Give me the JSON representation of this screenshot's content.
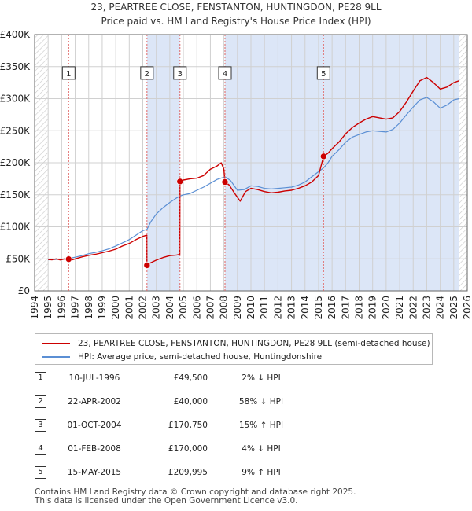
{
  "chart_data": {
    "type": "line",
    "title": "23, PEARTREE CLOSE, FENSTANTON, HUNTINGDON, PE28 9LL",
    "subtitle": "Price paid vs. HM Land Registry's House Price Index (HPI)",
    "xlim": [
      1994,
      2026
    ],
    "ylim": [
      0,
      400000
    ],
    "x_ticks": [
      "1994",
      "1995",
      "1996",
      "1997",
      "1998",
      "1999",
      "2000",
      "2001",
      "2002",
      "2003",
      "2004",
      "2005",
      "2006",
      "2007",
      "2008",
      "2009",
      "2010",
      "2011",
      "2012",
      "2013",
      "2014",
      "2015",
      "2016",
      "2017",
      "2018",
      "2019",
      "2020",
      "2021",
      "2022",
      "2023",
      "2024",
      "2025",
      "2026"
    ],
    "y_ticks": [
      {
        "value": 0,
        "label": "£0"
      },
      {
        "value": 50000,
        "label": "£50K"
      },
      {
        "value": 100000,
        "label": "£100K"
      },
      {
        "value": 150000,
        "label": "£150K"
      },
      {
        "value": 200000,
        "label": "£200K"
      },
      {
        "value": 250000,
        "label": "£250K"
      },
      {
        "value": 300000,
        "label": "£300K"
      },
      {
        "value": 350000,
        "label": "£350K"
      },
      {
        "value": 400000,
        "label": "£400K"
      }
    ],
    "grid": true,
    "data_span": [
      1995.0,
      2025.4
    ],
    "hatched_regions": [
      [
        1994,
        1995.0
      ],
      [
        2025.4,
        2026
      ]
    ],
    "colors": {
      "property": "#cc0000",
      "hpi": "#5b8fd4",
      "sale_band": "#dce6f7",
      "marker_line": "#e06666",
      "hatch": "#c8c8c8"
    },
    "series": [
      {
        "name": "23, PEARTREE CLOSE, FENSTANTON, HUNTINGDON, PE28 9LL (semi-detached house)",
        "color": "#cc0000",
        "points": [
          [
            1995.0,
            49000
          ],
          [
            1995.3,
            48500
          ],
          [
            1995.6,
            50000
          ],
          [
            1995.9,
            48200
          ],
          [
            1996.2,
            49800
          ],
          [
            1996.52,
            49500
          ],
          [
            1996.8,
            48600
          ],
          [
            1997.1,
            50600
          ],
          [
            1997.5,
            53000
          ],
          [
            1998.0,
            55500
          ],
          [
            1998.5,
            57000
          ],
          [
            1999.0,
            59500
          ],
          [
            1999.5,
            62000
          ],
          [
            2000.0,
            65000
          ],
          [
            2000.5,
            70000
          ],
          [
            2001.0,
            74000
          ],
          [
            2001.5,
            80000
          ],
          [
            2002.0,
            85000
          ],
          [
            2002.3,
            87000
          ],
          [
            2002.31,
            40000
          ],
          [
            2002.6,
            44000
          ],
          [
            2003.0,
            48000
          ],
          [
            2003.5,
            52000
          ],
          [
            2004.0,
            55000
          ],
          [
            2004.5,
            56000
          ],
          [
            2004.74,
            57000
          ],
          [
            2004.75,
            170750
          ],
          [
            2005.0,
            173000
          ],
          [
            2005.5,
            175000
          ],
          [
            2006.0,
            176000
          ],
          [
            2006.5,
            180000
          ],
          [
            2007.0,
            190000
          ],
          [
            2007.5,
            195000
          ],
          [
            2007.8,
            200000
          ],
          [
            2008.0,
            190000
          ],
          [
            2008.08,
            170000
          ],
          [
            2008.4,
            165000
          ],
          [
            2008.8,
            152000
          ],
          [
            2009.2,
            140000
          ],
          [
            2009.6,
            155000
          ],
          [
            2010.0,
            160000
          ],
          [
            2010.5,
            158000
          ],
          [
            2011.0,
            155000
          ],
          [
            2011.5,
            153000
          ],
          [
            2012.0,
            154000
          ],
          [
            2012.5,
            156000
          ],
          [
            2013.0,
            157000
          ],
          [
            2013.5,
            160000
          ],
          [
            2014.0,
            164000
          ],
          [
            2014.5,
            170000
          ],
          [
            2015.0,
            180000
          ],
          [
            2015.37,
            209995
          ],
          [
            2015.7,
            215000
          ],
          [
            2016.0,
            222000
          ],
          [
            2016.5,
            232000
          ],
          [
            2017.0,
            245000
          ],
          [
            2017.5,
            255000
          ],
          [
            2018.0,
            262000
          ],
          [
            2018.5,
            268000
          ],
          [
            2019.0,
            272000
          ],
          [
            2019.5,
            270000
          ],
          [
            2020.0,
            268000
          ],
          [
            2020.5,
            270000
          ],
          [
            2021.0,
            280000
          ],
          [
            2021.5,
            295000
          ],
          [
            2022.0,
            312000
          ],
          [
            2022.5,
            328000
          ],
          [
            2023.0,
            333000
          ],
          [
            2023.5,
            325000
          ],
          [
            2024.0,
            315000
          ],
          [
            2024.5,
            318000
          ],
          [
            2025.0,
            325000
          ],
          [
            2025.4,
            328000
          ]
        ]
      },
      {
        "name": "HPI: Average price, semi-detached house, Huntingdonshire",
        "color": "#5b8fd4",
        "points": [
          [
            1995.0,
            48500
          ],
          [
            1995.5,
            49000
          ],
          [
            1996.0,
            49500
          ],
          [
            1996.52,
            50500
          ],
          [
            1997.0,
            52500
          ],
          [
            1997.5,
            55000
          ],
          [
            1998.0,
            58000
          ],
          [
            1998.5,
            60000
          ],
          [
            1999.0,
            62500
          ],
          [
            1999.5,
            65500
          ],
          [
            2000.0,
            70000
          ],
          [
            2000.5,
            75000
          ],
          [
            2001.0,
            80000
          ],
          [
            2001.5,
            87000
          ],
          [
            2002.0,
            94000
          ],
          [
            2002.31,
            96000
          ],
          [
            2002.6,
            108000
          ],
          [
            2003.0,
            120000
          ],
          [
            2003.5,
            130000
          ],
          [
            2004.0,
            138000
          ],
          [
            2004.5,
            145000
          ],
          [
            2004.75,
            148000
          ],
          [
            2005.0,
            150000
          ],
          [
            2005.5,
            152000
          ],
          [
            2006.0,
            157000
          ],
          [
            2006.5,
            162000
          ],
          [
            2007.0,
            168000
          ],
          [
            2007.5,
            174000
          ],
          [
            2008.08,
            178000
          ],
          [
            2008.5,
            172000
          ],
          [
            2009.0,
            157000
          ],
          [
            2009.5,
            158000
          ],
          [
            2010.0,
            164000
          ],
          [
            2010.5,
            163000
          ],
          [
            2011.0,
            160000
          ],
          [
            2011.5,
            159000
          ],
          [
            2012.0,
            160000
          ],
          [
            2012.5,
            161000
          ],
          [
            2013.0,
            162000
          ],
          [
            2013.5,
            165000
          ],
          [
            2014.0,
            170000
          ],
          [
            2014.5,
            178000
          ],
          [
            2015.0,
            186000
          ],
          [
            2015.37,
            192000
          ],
          [
            2015.7,
            200000
          ],
          [
            2016.0,
            210000
          ],
          [
            2016.5,
            220000
          ],
          [
            2017.0,
            232000
          ],
          [
            2017.5,
            240000
          ],
          [
            2018.0,
            244000
          ],
          [
            2018.5,
            248000
          ],
          [
            2019.0,
            250000
          ],
          [
            2019.5,
            249000
          ],
          [
            2020.0,
            248000
          ],
          [
            2020.5,
            252000
          ],
          [
            2021.0,
            262000
          ],
          [
            2021.5,
            275000
          ],
          [
            2022.0,
            287000
          ],
          [
            2022.5,
            298000
          ],
          [
            2023.0,
            302000
          ],
          [
            2023.5,
            295000
          ],
          [
            2024.0,
            285000
          ],
          [
            2024.5,
            290000
          ],
          [
            2025.0,
            298000
          ],
          [
            2025.4,
            300000
          ]
        ]
      }
    ],
    "sales": [
      {
        "id": "1",
        "x": 1996.52,
        "price": 49500
      },
      {
        "id": "2",
        "x": 2002.31,
        "price": 40000
      },
      {
        "id": "3",
        "x": 2004.75,
        "price": 170750
      },
      {
        "id": "4",
        "x": 2008.08,
        "price": 170000
      },
      {
        "id": "5",
        "x": 2015.37,
        "price": 209995
      }
    ],
    "sale_label_value": 340000
  },
  "legend": {
    "placement": "below-chart",
    "items": [
      {
        "label": "23, PEARTREE CLOSE, FENSTANTON, HUNTINGDON, PE28 9LL (semi-detached house)",
        "color": "#cc0000"
      },
      {
        "label": "HPI: Average price, semi-detached house, Huntingdonshire",
        "color": "#5b8fd4"
      }
    ]
  },
  "table": [
    {
      "num": "1",
      "date": "10-JUL-1996",
      "price": "£49,500",
      "hpi": "2% ↓ HPI"
    },
    {
      "num": "2",
      "date": "22-APR-2002",
      "price": "£40,000",
      "hpi": "58% ↓ HPI"
    },
    {
      "num": "3",
      "date": "01-OCT-2004",
      "price": "£170,750",
      "hpi": "15% ↑ HPI"
    },
    {
      "num": "4",
      "date": "01-FEB-2008",
      "price": "£170,000",
      "hpi": "4% ↓ HPI"
    },
    {
      "num": "5",
      "date": "15-MAY-2015",
      "price": "£209,995",
      "hpi": "9% ↑ HPI"
    }
  ],
  "footer": {
    "line1": "Contains HM Land Registry data © Crown copyright and database right 2025.",
    "line2": "This data is licensed under the Open Government Licence v3.0."
  }
}
